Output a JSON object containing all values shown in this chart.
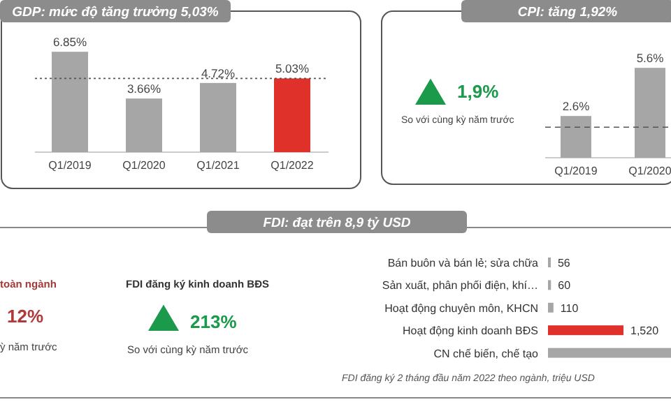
{
  "chart_data": [
    {
      "type": "bar",
      "title": "GDP: mức độ tăng trưởng 5,03%",
      "categories": [
        "Q1/2019",
        "Q1/2020",
        "Q1/2021",
        "Q1/2022"
      ],
      "values": [
        6.85,
        3.66,
        4.72,
        5.03
      ],
      "colors": [
        "#a6a6a6",
        "#a6a6a6",
        "#a6a6a6",
        "#e0302a"
      ],
      "value_labels": [
        "6.85%",
        "3.66%",
        "4.72%",
        "5.03%"
      ],
      "ref_lines": [
        {
          "axis": "y",
          "value": 5.03,
          "line_style": "dotted"
        }
      ]
    },
    {
      "type": "other",
      "annotations": [
        "1,9%",
        "So với cùng kỳ năm trước"
      ]
    },
    {
      "type": "bar",
      "title": "CPI: tăng 1,92%",
      "categories": [
        "Q1/2019",
        "Q1/2020"
      ],
      "values": [
        2.6,
        5.6
      ],
      "colors": [
        "#a6a6a6",
        "#a6a6a6"
      ],
      "value_labels": [
        "2.6%",
        "5.6%"
      ],
      "ref_lines": [
        {
          "axis": "y",
          "value": 1.9,
          "line_style": "dashed"
        }
      ]
    },
    {
      "type": "other",
      "title": "FDI: đạt trên 8,9 tỷ USD",
      "annotations": [
        "toàn ngành",
        "12%",
        "ỳ năm trước",
        "FDI đăng ký kinh doanh BĐS",
        "213%",
        "So với cùng kỳ năm trước"
      ]
    },
    {
      "type": "bar",
      "orientation": "horizontal",
      "categories": [
        "Bán buôn và bán lẻ; sửa chữa",
        "Sản xuất, phân phối điện, khí…",
        "Hoạt động chuyên môn, KHCN",
        "Hoạt động kinh doanh BĐS",
        "CN chế biến, chế tạo"
      ],
      "values": [
        56,
        60,
        110,
        1520,
        2500
      ],
      "colors": [
        "#a6a6a6",
        "#a6a6a6",
        "#a6a6a6",
        "#e0302a",
        "#a6a6a6"
      ],
      "value_labels": [
        "56",
        "60",
        "110",
        "1,520",
        null
      ],
      "annotations": [
        "FDI đăng ký 2 tháng đầu năm 2022 theo ngành, triệu USD"
      ]
    }
  ]
}
